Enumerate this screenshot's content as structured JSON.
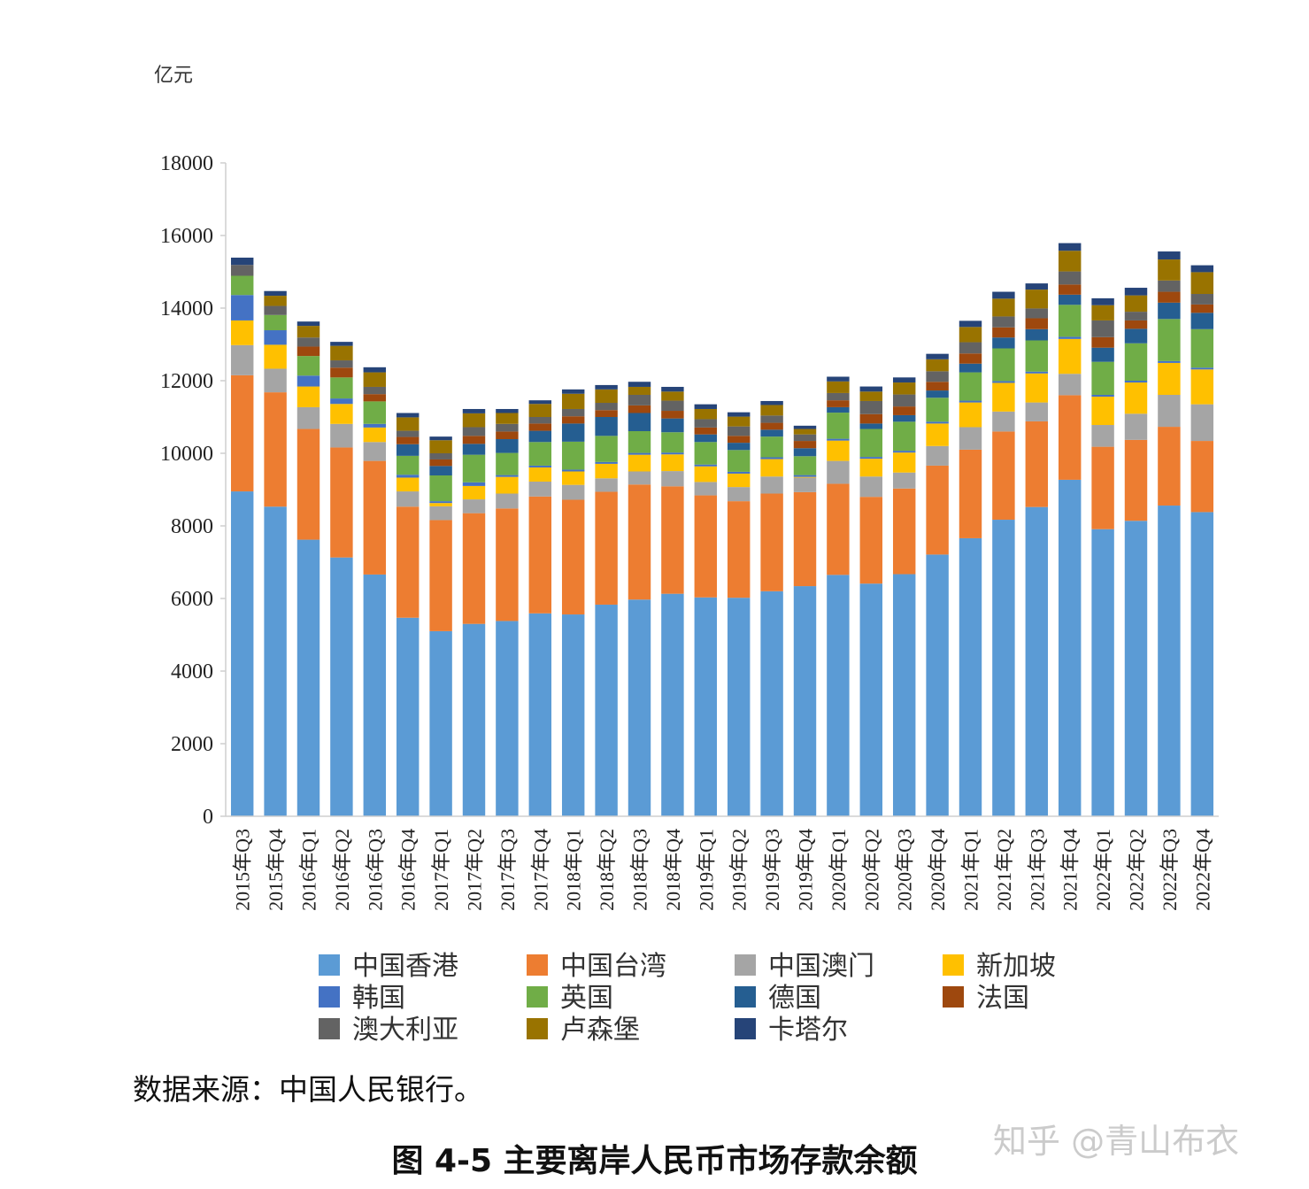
{
  "chart_data": {
    "type": "bar",
    "stacked": true,
    "unit_label": "亿元",
    "ylim": [
      0,
      18000
    ],
    "yticks": [
      0,
      2000,
      4000,
      6000,
      8000,
      10000,
      12000,
      14000,
      16000,
      18000
    ],
    "grid": false,
    "legend_position": "bottom",
    "categories": [
      "2015年Q3",
      "2015年Q4",
      "2016年Q1",
      "2016年Q2",
      "2016年Q3",
      "2016年Q4",
      "2017年Q1",
      "2017年Q2",
      "2017年Q3",
      "2017年Q4",
      "2018年Q1",
      "2018年Q2",
      "2018年Q3",
      "2018年Q4",
      "2019年Q1",
      "2019年Q2",
      "2019年Q3",
      "2019年Q4",
      "2020年Q1",
      "2020年Q2",
      "2020年Q3",
      "2020年Q4",
      "2021年Q1",
      "2021年Q2",
      "2021年Q3",
      "2021年Q4",
      "2022年Q1",
      "2022年Q2",
      "2022年Q3",
      "2022年Q4"
    ],
    "series": [
      {
        "name": "中国香港",
        "color": "#5b9bd5",
        "values": [
          8950,
          8530,
          7620,
          7130,
          6660,
          5470,
          5100,
          5300,
          5380,
          5590,
          5560,
          5830,
          5970,
          6130,
          6030,
          6020,
          6200,
          6340,
          6650,
          6410,
          6670,
          7210,
          7660,
          8170,
          8520,
          9270,
          7910,
          8140,
          8560,
          8380
        ]
      },
      {
        "name": "中国台湾",
        "color": "#ed7d31",
        "values": [
          3200,
          3150,
          3050,
          3030,
          3130,
          3060,
          3060,
          3050,
          3100,
          3220,
          3160,
          3110,
          3170,
          2960,
          2810,
          2660,
          2690,
          2590,
          2510,
          2390,
          2360,
          2450,
          2440,
          2430,
          2360,
          2330,
          2270,
          2230,
          2170,
          1960
        ]
      },
      {
        "name": "中国澳门",
        "color": "#a5a5a5",
        "values": [
          830,
          650,
          600,
          650,
          520,
          420,
          380,
          380,
          410,
          410,
          410,
          370,
          360,
          420,
          370,
          390,
          470,
          400,
          630,
          560,
          440,
          540,
          620,
          550,
          520,
          590,
          600,
          720,
          880,
          1010
        ]
      },
      {
        "name": "新加坡",
        "color": "#ffc000",
        "values": [
          680,
          660,
          570,
          550,
          400,
          380,
          90,
          370,
          460,
          390,
          370,
          400,
          460,
          460,
          430,
          370,
          480,
          20,
          560,
          490,
          550,
          620,
          680,
          790,
          800,
          960,
          780,
          860,
          880,
          960
        ]
      },
      {
        "name": "韩国",
        "color": "#4472c4",
        "values": [
          700,
          400,
          300,
          150,
          100,
          80,
          50,
          100,
          50,
          50,
          50,
          50,
          50,
          50,
          50,
          50,
          50,
          50,
          50,
          50,
          50,
          50,
          50,
          50,
          50,
          60,
          50,
          50,
          50,
          50
        ]
      },
      {
        "name": "英国",
        "color": "#70ad47",
        "values": [
          530,
          420,
          540,
          580,
          620,
          520,
          710,
          760,
          610,
          650,
          770,
          720,
          600,
          560,
          620,
          600,
          570,
          520,
          720,
          770,
          800,
          660,
          780,
          900,
          860,
          880,
          910,
          1030,
          1160,
          1060
        ]
      },
      {
        "name": "德国",
        "color": "#255e91",
        "values": [
          0,
          0,
          0,
          0,
          0,
          320,
          260,
          300,
          380,
          310,
          500,
          520,
          500,
          380,
          210,
          200,
          190,
          220,
          150,
          150,
          180,
          200,
          240,
          300,
          310,
          280,
          390,
          400,
          450,
          450
        ]
      },
      {
        "name": "法国",
        "color": "#9e480e",
        "values": [
          0,
          0,
          260,
          270,
          200,
          200,
          180,
          220,
          210,
          200,
          200,
          190,
          210,
          210,
          190,
          190,
          190,
          200,
          190,
          260,
          240,
          240,
          280,
          280,
          300,
          280,
          290,
          230,
          300,
          230
        ]
      },
      {
        "name": "澳大利亚",
        "color": "#636363",
        "values": [
          300,
          250,
          250,
          200,
          200,
          170,
          170,
          240,
          210,
          180,
          200,
          200,
          290,
          280,
          230,
          260,
          200,
          180,
          200,
          360,
          330,
          290,
          310,
          300,
          270,
          360,
          460,
          240,
          310,
          290
        ]
      },
      {
        "name": "卢森堡",
        "color": "#997300",
        "values": [
          0,
          280,
          320,
          400,
          400,
          370,
          360,
          380,
          300,
          360,
          420,
          370,
          220,
          250,
          280,
          270,
          290,
          150,
          320,
          260,
          330,
          330,
          420,
          490,
          520,
          570,
          420,
          450,
          580,
          600
        ]
      },
      {
        "name": "卡塔尔",
        "color": "#264478",
        "values": [
          200,
          130,
          120,
          110,
          140,
          120,
          100,
          120,
          110,
          100,
          120,
          120,
          140,
          130,
          130,
          120,
          110,
          90,
          130,
          140,
          140,
          150,
          170,
          190,
          170,
          210,
          190,
          210,
          220,
          190
        ]
      }
    ]
  },
  "legend_labels": [
    "中国香港",
    "中国台湾",
    "中国澳门",
    "新加坡",
    "韩国",
    "英国",
    "德国",
    "法国",
    "澳大利亚",
    "卢森堡",
    "卡塔尔"
  ],
  "source_note": "数据来源：中国人民银行。",
  "caption": "图 4-5  主要离岸人民币市场存款余额",
  "watermark": "知乎 @青山布衣"
}
